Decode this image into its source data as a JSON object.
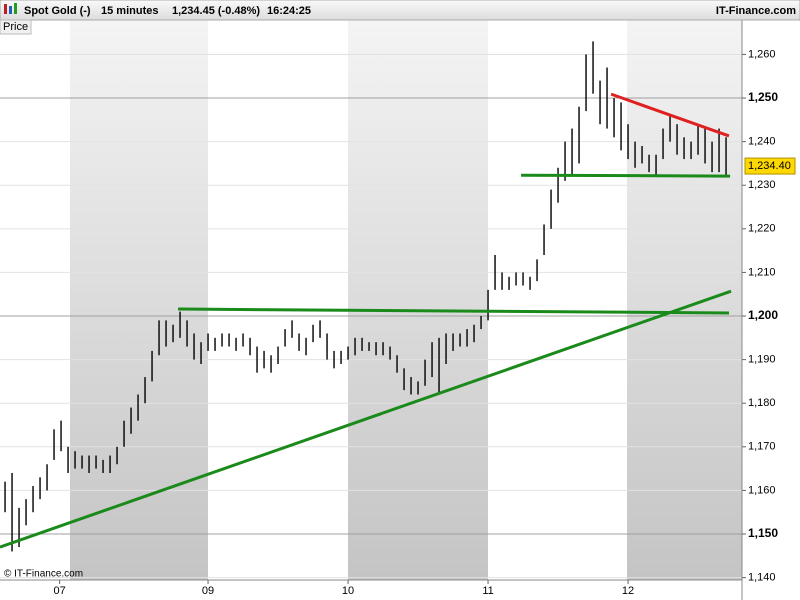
{
  "chart_data": {
    "type": "ohlc",
    "title": "Spot Gold (-)",
    "interval": "15 minutes",
    "quote": "1,234.45 (-0.48%)",
    "time": "16:24:25",
    "source": "IT-Finance.com",
    "y_label": "Price",
    "watermark": "© IT-Finance.com",
    "color": "#000000",
    "x": [
      7.55,
      7.6,
      7.65,
      7.7,
      7.75,
      7.8,
      7.85,
      7.9,
      7.95,
      8.0,
      8.05,
      8.1,
      8.15,
      8.2,
      8.25,
      8.3,
      8.35,
      8.4,
      8.45,
      8.5,
      8.55,
      8.6,
      8.65,
      8.7,
      8.75,
      8.8,
      8.85,
      8.9,
      8.95,
      9.0,
      9.05,
      9.1,
      9.15,
      9.2,
      9.25,
      9.3,
      9.35,
      9.4,
      9.45,
      9.5,
      9.55,
      9.6,
      9.65,
      9.7,
      9.75,
      9.8,
      9.85,
      9.9,
      9.95,
      10.0,
      10.05,
      10.1,
      10.15,
      10.2,
      10.25,
      10.3,
      10.35,
      10.4,
      10.45,
      10.5,
      10.55,
      10.6,
      10.65,
      10.7,
      10.75,
      10.8,
      10.85,
      10.9,
      10.95,
      11.0,
      11.05,
      11.1,
      11.15,
      11.2,
      11.25,
      11.3,
      11.35,
      11.4,
      11.45,
      11.5,
      11.55,
      11.6,
      11.65,
      11.7,
      11.75,
      11.8,
      11.85,
      11.9,
      11.95,
      12.0,
      12.05,
      12.1,
      12.15,
      12.2,
      12.25,
      12.3,
      12.35,
      12.4,
      12.45,
      12.5,
      12.55,
      12.6,
      12.65,
      12.7
    ],
    "high": [
      1162,
      1164,
      1156,
      1158,
      1161,
      1163,
      1166,
      1174,
      1176,
      1170,
      1169,
      1168,
      1168,
      1168,
      1167,
      1168,
      1170,
      1176,
      1179,
      1182,
      1186,
      1192,
      1199,
      1199,
      1198,
      1201,
      1199,
      1196,
      1194,
      1196,
      1195,
      1196,
      1196,
      1195,
      1196,
      1195,
      1193,
      1192,
      1191,
      1193,
      1197,
      1199,
      1196,
      1195,
      1198,
      1199,
      1196,
      1192,
      1192,
      1193,
      1195,
      1195,
      1194,
      1194,
      1194,
      1193,
      1191,
      1188,
      1186,
      1185,
      1190,
      1194,
      1195,
      1196,
      1196,
      1196,
      1197,
      1198,
      1200,
      1206,
      1214,
      1210,
      1209,
      1210,
      1210,
      1209,
      1213,
      1221,
      1229,
      1234,
      1240,
      1243,
      1248,
      1260,
      1263,
      1254,
      1257,
      1250,
      1249,
      1244,
      1240,
      1239,
      1237,
      1237,
      1243,
      1246,
      1244,
      1241,
      1240,
      1244,
      1243,
      1240,
      1243,
      1241
    ],
    "low": [
      1155,
      1146,
      1147,
      1152,
      1155,
      1158,
      1160,
      1167,
      1169,
      1164,
      1165,
      1165,
      1164,
      1165,
      1164,
      1164,
      1166,
      1170,
      1173,
      1176,
      1180,
      1185,
      1191,
      1193,
      1194,
      1195,
      1193,
      1190,
      1189,
      1192,
      1192,
      1193,
      1193,
      1192,
      1193,
      1191,
      1187,
      1188,
      1187,
      1189,
      1193,
      1195,
      1192,
      1191,
      1194,
      1195,
      1190,
      1188,
      1189,
      1190,
      1191,
      1192,
      1192,
      1191,
      1191,
      1190,
      1187,
      1183,
      1182,
      1182,
      1184,
      1186,
      1182,
      1189,
      1192,
      1193,
      1193,
      1194,
      1197,
      1199,
      1206,
      1206,
      1206,
      1207,
      1207,
      1206,
      1208,
      1214,
      1220,
      1226,
      1231,
      1232,
      1235,
      1247,
      1251,
      1244,
      1243,
      1241,
      1238,
      1236,
      1234,
      1235,
      1233,
      1232,
      1236,
      1240,
      1237,
      1236,
      1236,
      1237,
      1235,
      1233,
      1233,
      1232
    ],
    "last_price": {
      "value": 1234.4,
      "label": "1,234.40"
    },
    "trendlines": [
      {
        "color": "#1a8a1a",
        "x": [
          7.514,
          12.736
        ],
        "y": [
          1147.0,
          1205.7
        ]
      },
      {
        "color": "#1a8a1a",
        "x": [
          8.786,
          12.721
        ],
        "y": [
          1201.6,
          1200.7
        ]
      },
      {
        "color": "#1a8a1a",
        "x": [
          11.236,
          12.729
        ],
        "y": [
          1232.3,
          1232.1
        ]
      },
      {
        "color": "#e02020",
        "x": [
          11.879,
          12.721
        ],
        "y": [
          1250.9,
          1241.3
        ]
      }
    ],
    "xlim": [
      7.514,
      12.814
    ],
    "xticks": [
      {
        "value": 7.94,
        "label": "07"
      },
      {
        "value": 9,
        "label": "09"
      },
      {
        "value": 10,
        "label": "10"
      },
      {
        "value": 11,
        "label": "11"
      },
      {
        "value": 12,
        "label": "12"
      }
    ],
    "ylim": [
      1139.45,
      1267.9
    ],
    "yticks": [
      {
        "value": 1140,
        "label": "1,140"
      },
      {
        "value": 1150,
        "label": "1,150"
      },
      {
        "value": 1160,
        "label": "1,160"
      },
      {
        "value": 1170,
        "label": "1,170"
      },
      {
        "value": 1180,
        "label": "1,180"
      },
      {
        "value": 1190,
        "label": "1,190"
      },
      {
        "value": 1200,
        "label": "1,200"
      },
      {
        "value": 1210,
        "label": "1,210"
      },
      {
        "value": 1220,
        "label": "1,220"
      },
      {
        "value": 1230,
        "label": "1,230"
      },
      {
        "value": 1240,
        "label": "1,240"
      },
      {
        "value": 1250,
        "label": "1,250"
      },
      {
        "value": 1260,
        "label": "1,260"
      }
    ],
    "grid": true
  }
}
